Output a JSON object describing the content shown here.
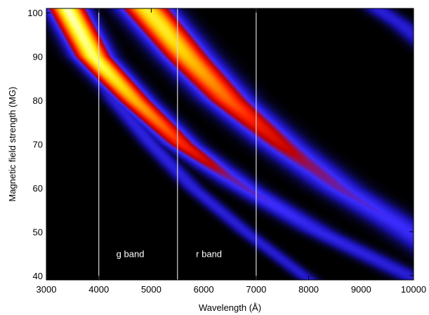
{
  "chart_data": {
    "type": "heatmap",
    "title": "",
    "xlabel": "Wavelength (Å)",
    "ylabel": "Magnetic field strength (MG)",
    "xlim": [
      3000,
      10000
    ],
    "ylim": [
      39,
      101
    ],
    "x_ticks": [
      3000,
      4000,
      5000,
      6000,
      7000,
      8000,
      9000,
      10000
    ],
    "y_ticks": [
      40,
      50,
      60,
      70,
      80,
      90,
      100
    ],
    "x_tick_labels": [
      "3000",
      "4000",
      "5000",
      "6000",
      "7000",
      "8000",
      "9000",
      "10000"
    ],
    "y_tick_labels": [
      "40",
      "50",
      "60",
      "70",
      "80",
      "90",
      "100"
    ],
    "background_color": "#000000",
    "colormap": [
      "#000000",
      "#1a12b0",
      "#3a2cff",
      "#c00000",
      "#ff2000",
      "#ff8000",
      "#ffd000",
      "#ffff40",
      "#ffffff"
    ],
    "band_boundaries": [
      4000,
      5500,
      7000
    ],
    "band_line_color": "#d8d8d8",
    "band_labels": [
      {
        "text": "g band",
        "x": 4600,
        "y": 45
      },
      {
        "text": "r band",
        "x": 6100,
        "y": 45
      }
    ],
    "features": [
      {
        "points": [
          [
            3350,
            101
          ],
          [
            3800,
            90
          ],
          [
            4300,
            80
          ],
          [
            5000,
            70
          ],
          [
            5800,
            60
          ],
          [
            6800,
            50
          ],
          [
            7900,
            40
          ]
        ],
        "halfwidth": 190,
        "intensity": [
          [
            3000,
            0.18
          ],
          [
            5000,
            0.2
          ],
          [
            10000,
            0.15
          ]
        ]
      },
      {
        "points": [
          [
            3400,
            101
          ],
          [
            3900,
            90
          ],
          [
            4700,
            80
          ],
          [
            5600,
            70
          ],
          [
            6800,
            60
          ],
          [
            8200,
            50
          ],
          [
            9900,
            40
          ]
        ],
        "halfwidth": 320,
        "intensity": [
          [
            3000,
            1.0
          ],
          [
            4000,
            0.9
          ],
          [
            4800,
            0.68
          ],
          [
            5600,
            0.5
          ],
          [
            6500,
            0.3
          ],
          [
            8000,
            0.22
          ],
          [
            10000,
            0.18
          ]
        ]
      },
      {
        "points": [
          [
            4900,
            101
          ],
          [
            5700,
            90
          ],
          [
            6500,
            80
          ],
          [
            7500,
            70
          ],
          [
            8600,
            60
          ],
          [
            9800,
            51
          ],
          [
            10400,
            46
          ]
        ],
        "halfwidth": 430,
        "intensity": [
          [
            3000,
            0.9
          ],
          [
            5300,
            0.82
          ],
          [
            6000,
            0.68
          ],
          [
            7000,
            0.48
          ],
          [
            8000,
            0.33
          ],
          [
            9000,
            0.27
          ],
          [
            10000,
            0.24
          ]
        ]
      },
      {
        "points": [
          [
            9300,
            101
          ],
          [
            9800,
            97
          ],
          [
            10200,
            93
          ]
        ],
        "halfwidth": 260,
        "intensity": [
          [
            3000,
            0.18
          ],
          [
            10000,
            0.18
          ]
        ]
      }
    ]
  }
}
